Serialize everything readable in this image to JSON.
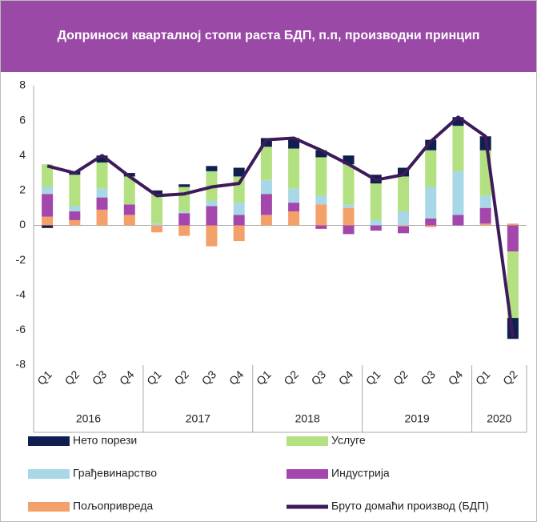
{
  "chart_data": {
    "type": "bar",
    "title": "Доприноси кварталној стопи раста БДП, п.п, производни принцип",
    "categories": [
      "Q1",
      "Q2",
      "Q3",
      "Q4",
      "Q1",
      "Q2",
      "Q3",
      "Q4",
      "Q1",
      "Q2",
      "Q3",
      "Q4",
      "Q1",
      "Q2",
      "Q3",
      "Q4",
      "Q1",
      "Q2"
    ],
    "years": [
      "2016",
      "2017",
      "2018",
      "2019",
      "2020"
    ],
    "stacked": true,
    "ylim": [
      -8,
      8
    ],
    "yticks": [
      -8,
      -6,
      -4,
      -2,
      0,
      2,
      4,
      6,
      8
    ],
    "series": [
      {
        "name": "Нето порези",
        "color": "#0f1f4f",
        "values": [
          -0.15,
          0.2,
          0.4,
          0.2,
          0.2,
          0.15,
          0.3,
          0.5,
          0.5,
          0.6,
          0.4,
          0.5,
          0.5,
          0.5,
          0.6,
          0.5,
          0.8,
          -1.2
        ]
      },
      {
        "name": "Услуге",
        "color": "#b3e080",
        "values": [
          1.3,
          1.8,
          1.5,
          1.6,
          1.7,
          1.4,
          1.7,
          1.5,
          1.9,
          2.3,
          2.2,
          2.3,
          2.1,
          2.0,
          2.1,
          2.6,
          2.6,
          -3.8
        ]
      },
      {
        "name": "Грађевинарство",
        "color": "#a8d8e8",
        "values": [
          0.4,
          0.3,
          0.5,
          0.0,
          0.1,
          0.1,
          0.3,
          0.7,
          0.8,
          0.8,
          0.5,
          0.2,
          0.3,
          0.8,
          1.8,
          2.5,
          0.7,
          0.0
        ]
      },
      {
        "name": "Индустрија",
        "color": "#a347ad",
        "values": [
          1.3,
          0.5,
          0.7,
          0.6,
          0.0,
          0.7,
          1.1,
          0.6,
          1.2,
          0.5,
          -0.2,
          -0.5,
          -0.3,
          -0.4,
          0.4,
          0.6,
          0.9,
          -1.5
        ]
      },
      {
        "name": "Пољопривреда",
        "color": "#f4a06a",
        "values": [
          0.5,
          0.3,
          0.9,
          0.6,
          -0.4,
          -0.6,
          -1.2,
          -0.9,
          0.6,
          0.8,
          1.2,
          1.0,
          0.0,
          -0.05,
          -0.1,
          0.0,
          0.1,
          0.1
        ]
      },
      {
        "name": "Бруто домаћи производ (БДП)",
        "type": "line",
        "color": "#3d1a5a",
        "values": [
          3.4,
          3.0,
          4.0,
          2.8,
          1.7,
          1.8,
          2.2,
          2.4,
          4.9,
          5.0,
          4.3,
          3.5,
          2.6,
          2.9,
          4.8,
          6.2,
          5.1,
          -6.4
        ]
      }
    ]
  }
}
